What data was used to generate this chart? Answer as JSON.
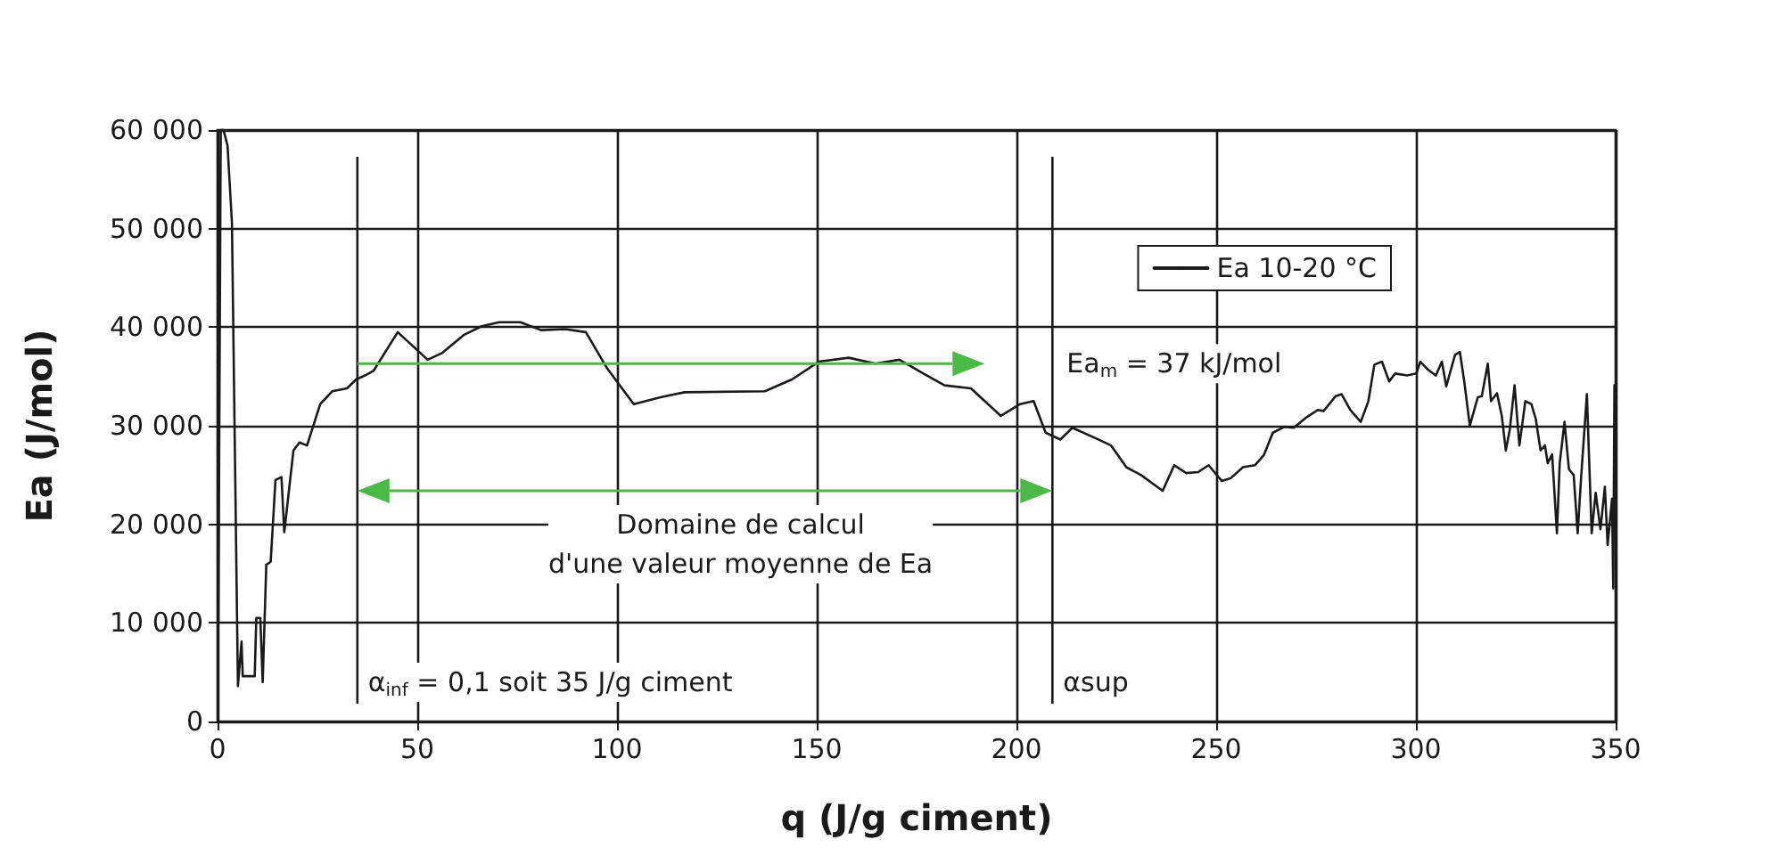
{
  "chart_data": {
    "type": "line",
    "xlabel": "q (J/g ciment)",
    "ylabel": "Ea (J/mol)",
    "xlim": [
      0,
      350
    ],
    "xticks": [
      0,
      50,
      100,
      150,
      200,
      250,
      300,
      350
    ],
    "ylim": [
      0,
      60000
    ],
    "yticks": [
      0,
      {
        "value": 10000,
        "label": "10 000"
      },
      {
        "value": 20000,
        "label": "20 000"
      },
      {
        "value": 30000,
        "label": "30 000"
      },
      {
        "value": 40000,
        "label": "40 000"
      },
      {
        "value": 50000,
        "label": "50 000"
      },
      {
        "value": 60000,
        "label": "60 000"
      }
    ],
    "grid": true,
    "legend": "top right",
    "marker": "none",
    "line_style": "solid",
    "series": [
      {
        "name": "Ea 10-20 °C",
        "color": "#1a1a1a",
        "x": [
          0.2,
          0.8,
          1.5,
          2.5,
          3.6,
          5.1,
          6.0,
          6.3,
          9.3,
          9.7,
          10.7,
          11.3,
          12.2,
          13.3,
          14.5,
          16.0,
          16.7,
          19.0,
          20.5,
          22.4,
          25.7,
          28.7,
          32.4,
          34.7,
          36.9,
          39.1,
          45.1,
          52.6,
          56.3,
          61.6,
          66.1,
          70.5,
          75.8,
          81.0,
          87.0,
          92.2,
          97.4,
          104.2,
          110.9,
          116.9,
          137,
          143.8,
          150.5,
          158,
          164.7,
          170.7,
          176.7,
          182,
          188.6,
          196.1,
          200.9,
          204.3,
          207.3,
          211,
          214,
          220,
          223.7,
          227.5,
          231.2,
          236.6,
          239.5,
          242.5,
          245.5,
          248.1,
          251.4,
          253.7,
          256.7,
          259.7,
          261.9,
          264.2,
          267.1,
          269.4,
          272.4,
          275.4,
          276.9,
          279.9,
          281.4,
          283.6,
          286.2,
          288.1,
          289.6,
          291.5,
          293.3,
          294.8,
          297.8,
          300.1,
          301.1,
          303,
          305,
          306.5,
          307.6,
          309.8,
          311,
          312.1,
          313.5,
          315.5,
          316.5,
          318,
          318.8,
          320.3,
          321.5,
          322.5,
          323.5,
          324.7,
          325.9,
          327.4,
          328.9,
          330,
          331.2,
          332.3,
          333,
          334.1,
          335.3,
          336,
          337.2,
          338.3,
          339.5,
          340.5,
          341.3,
          342.8,
          344,
          345,
          346.2,
          347.3,
          348,
          349.1,
          349.4,
          349.7,
          349.9
        ],
        "values": [
          10000,
          60000,
          60000,
          58400,
          50600,
          3600,
          8100,
          4600,
          4600,
          10500,
          10500,
          4000,
          15900,
          16200,
          24500,
          24800,
          19200,
          27500,
          28300,
          28000,
          32200,
          33500,
          33800,
          34700,
          35100,
          35600,
          39500,
          36700,
          37400,
          39200,
          40100,
          40500,
          40500,
          39700,
          39800,
          39500,
          35900,
          32200,
          32900,
          33400,
          33500,
          34700,
          36500,
          36900,
          36300,
          36700,
          35300,
          34100,
          33800,
          31000,
          32200,
          32500,
          29300,
          28600,
          29800,
          28700,
          28000,
          25800,
          25000,
          23400,
          26000,
          25200,
          25300,
          26000,
          24400,
          24700,
          25800,
          26000,
          27000,
          29300,
          29900,
          29800,
          30800,
          31600,
          31500,
          33000,
          33200,
          31600,
          30400,
          32500,
          36200,
          36500,
          34500,
          35300,
          35100,
          35300,
          36500,
          35700,
          35100,
          36500,
          34000,
          37200,
          37500,
          34500,
          30000,
          32900,
          33000,
          36300,
          32500,
          33300,
          31000,
          27500,
          29600,
          34100,
          28000,
          32500,
          32200,
          30700,
          27500,
          28000,
          26200,
          27100,
          19100,
          26200,
          30400,
          25600,
          25000,
          19100,
          24400,
          33200,
          19100,
          23200,
          19500,
          23800,
          17900,
          22600,
          13500,
          34100,
          20000
        ]
      }
    ],
    "ref_lines": [
      {
        "axis": "x",
        "value": 35,
        "label": "α$_{inf}$ = 0,1 soit 35 J/g ciment"
      },
      {
        "axis": "x",
        "value": 209,
        "label": "αsup"
      }
    ],
    "annotations": [
      "Ea$_{m}$ = 37 kJ/mol",
      "Domaine de calcul\nd'une valeur moyenne de Ea"
    ]
  }
}
